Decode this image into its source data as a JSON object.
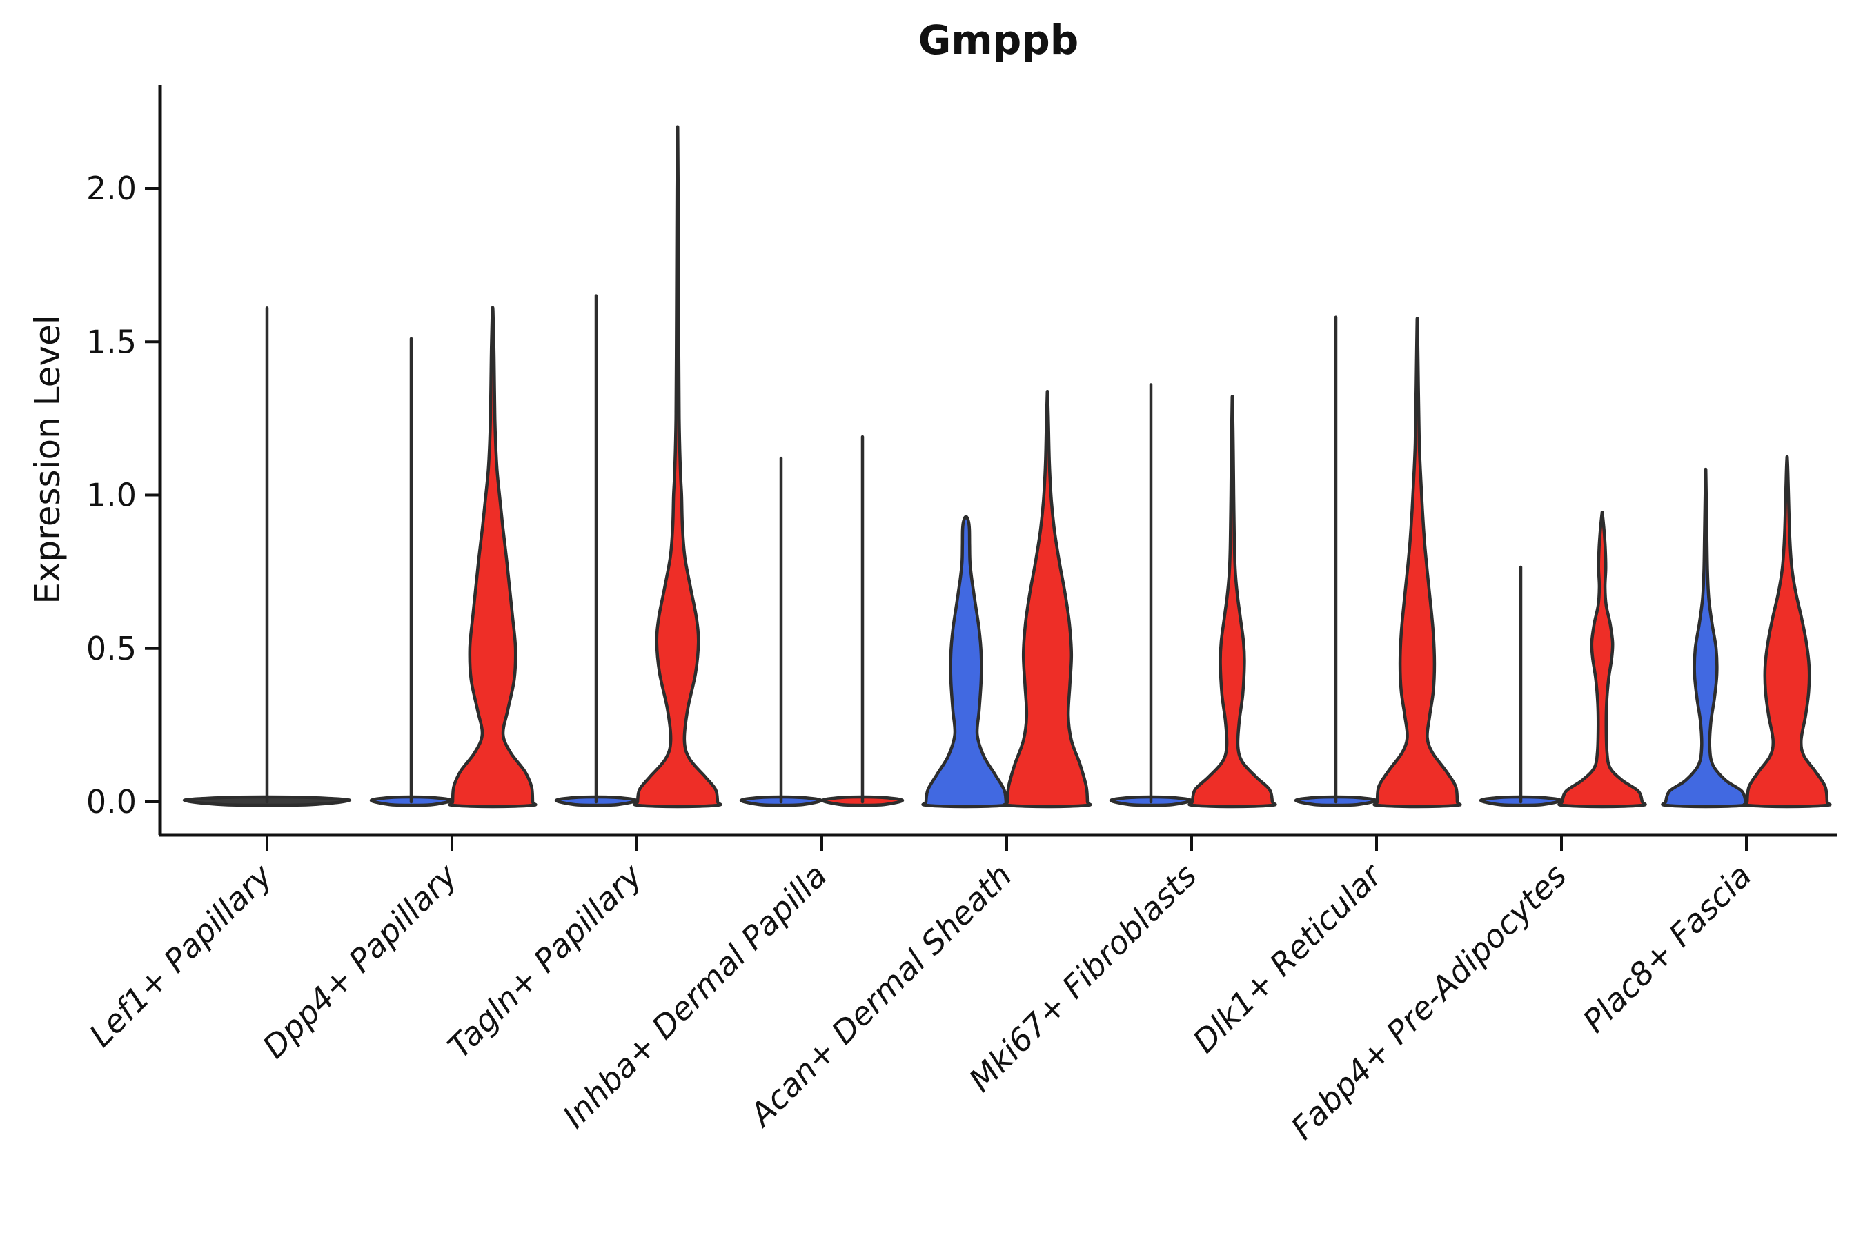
{
  "title": "Gmppb",
  "axes": {
    "ylabel": "Expression Level",
    "ytick_labels": [
      "0.0",
      "0.5",
      "1.0",
      "1.5",
      "2.0"
    ]
  },
  "colors": {
    "blue_fill": "#4169E1",
    "red_fill": "#EE2E27",
    "outline": "#2d2d2d",
    "axis": "#111111",
    "neutral_fill": "#3a3a3a",
    "background": "#ffffff"
  },
  "chart_data": {
    "type": "violin",
    "title": "Gmppb",
    "xlabel": "",
    "ylabel": "Expression Level",
    "ylim": [
      -0.1,
      2.3
    ],
    "yticks": [
      0.0,
      0.5,
      1.0,
      1.5,
      2.0
    ],
    "grid": false,
    "legend": "none",
    "categories": [
      "Lef1+ Papillary",
      "Dpp4+ Papillary",
      "Tagln+ Papillary",
      "Inhba+ Dermal Papilla",
      "Acan+ Dermal Sheath",
      "Mki67+ Fibroblasts",
      "Dlk1+ Reticular",
      "Fabp4+ Pre-Adipocytes",
      "Plac8+ Fascia"
    ],
    "series": [
      {
        "name": "group-blue",
        "color": "#4169E1"
      },
      {
        "name": "group-red",
        "color": "#EE2E27"
      }
    ],
    "violins": [
      {
        "category": "Lef1+ Papillary",
        "single": true,
        "center_group": {
          "kind": "spike",
          "max": 1.61,
          "wide": true,
          "color": "#3a3a3a"
        }
      },
      {
        "category": "Dpp4+ Papillary",
        "blue": {
          "kind": "spike",
          "max": 1.51
        },
        "red": {
          "kind": "body",
          "max": 1.6,
          "profile": [
            [
              0,
              1
            ],
            [
              0.05,
              0.97
            ],
            [
              0.1,
              0.8
            ],
            [
              0.16,
              0.45
            ],
            [
              0.22,
              0.26
            ],
            [
              0.3,
              0.38
            ],
            [
              0.4,
              0.54
            ],
            [
              0.5,
              0.57
            ],
            [
              0.6,
              0.5
            ],
            [
              0.7,
              0.42
            ],
            [
              0.8,
              0.34
            ],
            [
              0.9,
              0.25
            ],
            [
              1.0,
              0.17
            ],
            [
              1.1,
              0.1
            ],
            [
              1.25,
              0.055
            ],
            [
              1.45,
              0.035
            ],
            [
              1.6,
              0.008
            ]
          ]
        }
      },
      {
        "category": "Tagln+ Papillary",
        "blue": {
          "kind": "spike",
          "max": 1.65
        },
        "red": {
          "kind": "body",
          "max": 2.18,
          "profile": [
            [
              0,
              1
            ],
            [
              0.04,
              0.95
            ],
            [
              0.08,
              0.7
            ],
            [
              0.14,
              0.3
            ],
            [
              0.2,
              0.17
            ],
            [
              0.3,
              0.25
            ],
            [
              0.42,
              0.45
            ],
            [
              0.52,
              0.52
            ],
            [
              0.6,
              0.47
            ],
            [
              0.7,
              0.32
            ],
            [
              0.8,
              0.18
            ],
            [
              0.9,
              0.12
            ],
            [
              1.0,
              0.1
            ],
            [
              1.08,
              0.07
            ],
            [
              1.25,
              0.04
            ],
            [
              1.6,
              0.025
            ],
            [
              1.9,
              0.018
            ],
            [
              2.18,
              0.006
            ]
          ]
        }
      },
      {
        "category": "Inhba+ Dermal Papilla",
        "blue": {
          "kind": "spike",
          "max": 1.12
        },
        "red": {
          "kind": "spike",
          "max": 1.19
        }
      },
      {
        "category": "Acan+ Dermal Sheath",
        "blue": {
          "kind": "body",
          "max": 0.93,
          "cap": "round",
          "profile": [
            [
              0,
              1
            ],
            [
              0.04,
              0.95
            ],
            [
              0.09,
              0.72
            ],
            [
              0.15,
              0.44
            ],
            [
              0.22,
              0.28
            ],
            [
              0.3,
              0.33
            ],
            [
              0.4,
              0.38
            ],
            [
              0.48,
              0.38
            ],
            [
              0.56,
              0.33
            ],
            [
              0.64,
              0.24
            ],
            [
              0.72,
              0.15
            ],
            [
              0.78,
              0.1
            ],
            [
              0.84,
              0.09
            ],
            [
              0.89,
              0.085
            ],
            [
              0.915,
              0.06
            ]
          ]
        },
        "red": {
          "kind": "body",
          "max": 1.33,
          "profile": [
            [
              0,
              1
            ],
            [
              0.05,
              0.97
            ],
            [
              0.12,
              0.82
            ],
            [
              0.2,
              0.6
            ],
            [
              0.28,
              0.52
            ],
            [
              0.38,
              0.56
            ],
            [
              0.48,
              0.6
            ],
            [
              0.58,
              0.55
            ],
            [
              0.68,
              0.44
            ],
            [
              0.78,
              0.3
            ],
            [
              0.88,
              0.18
            ],
            [
              0.98,
              0.1
            ],
            [
              1.1,
              0.05
            ],
            [
              1.22,
              0.028
            ],
            [
              1.33,
              0.006
            ]
          ]
        }
      },
      {
        "category": "Mki67+ Fibroblasts",
        "blue": {
          "kind": "spike",
          "max": 1.36
        },
        "red": {
          "kind": "body",
          "max": 1.31,
          "profile": [
            [
              0,
              1
            ],
            [
              0.04,
              0.93
            ],
            [
              0.08,
              0.6
            ],
            [
              0.13,
              0.25
            ],
            [
              0.18,
              0.14
            ],
            [
              0.26,
              0.17
            ],
            [
              0.35,
              0.26
            ],
            [
              0.45,
              0.3
            ],
            [
              0.52,
              0.28
            ],
            [
              0.6,
              0.2
            ],
            [
              0.68,
              0.12
            ],
            [
              0.76,
              0.07
            ],
            [
              0.85,
              0.05
            ],
            [
              1.0,
              0.035
            ],
            [
              1.15,
              0.022
            ],
            [
              1.31,
              0.006
            ]
          ]
        }
      },
      {
        "category": "Dlk1+ Reticular",
        "blue": {
          "kind": "spike",
          "max": 1.58
        },
        "red": {
          "kind": "body",
          "max": 1.56,
          "profile": [
            [
              0,
              1
            ],
            [
              0.05,
              0.96
            ],
            [
              0.1,
              0.72
            ],
            [
              0.16,
              0.38
            ],
            [
              0.21,
              0.25
            ],
            [
              0.28,
              0.31
            ],
            [
              0.36,
              0.4
            ],
            [
              0.45,
              0.43
            ],
            [
              0.55,
              0.4
            ],
            [
              0.65,
              0.33
            ],
            [
              0.75,
              0.25
            ],
            [
              0.85,
              0.18
            ],
            [
              0.95,
              0.13
            ],
            [
              1.05,
              0.09
            ],
            [
              1.17,
              0.05
            ],
            [
              1.35,
              0.028
            ],
            [
              1.56,
              0.006
            ]
          ]
        }
      },
      {
        "category": "Fabp4+ Pre-Adipocytes",
        "blue": {
          "kind": "spike",
          "max": 0.765
        },
        "red": {
          "kind": "body",
          "max": 0.94,
          "profile": [
            [
              0,
              1
            ],
            [
              0.035,
              0.9
            ],
            [
              0.07,
              0.5
            ],
            [
              0.11,
              0.2
            ],
            [
              0.16,
              0.12
            ],
            [
              0.24,
              0.1
            ],
            [
              0.32,
              0.11
            ],
            [
              0.4,
              0.16
            ],
            [
              0.47,
              0.24
            ],
            [
              0.52,
              0.26
            ],
            [
              0.58,
              0.2
            ],
            [
              0.64,
              0.1
            ],
            [
              0.7,
              0.07
            ],
            [
              0.76,
              0.09
            ],
            [
              0.82,
              0.08
            ],
            [
              0.88,
              0.05
            ],
            [
              0.94,
              0.006
            ]
          ]
        }
      },
      {
        "category": "Plac8+ Fascia",
        "blue": {
          "kind": "body",
          "max": 1.07,
          "profile": [
            [
              0,
              1
            ],
            [
              0.035,
              0.9
            ],
            [
              0.07,
              0.5
            ],
            [
              0.12,
              0.18
            ],
            [
              0.18,
              0.1
            ],
            [
              0.26,
              0.13
            ],
            [
              0.34,
              0.22
            ],
            [
              0.42,
              0.28
            ],
            [
              0.5,
              0.26
            ],
            [
              0.58,
              0.16
            ],
            [
              0.66,
              0.08
            ],
            [
              0.75,
              0.045
            ],
            [
              0.88,
              0.028
            ],
            [
              1.07,
              0.006
            ]
          ]
        },
        "red": {
          "kind": "body",
          "max": 1.12,
          "profile": [
            [
              0,
              1
            ],
            [
              0.05,
              0.95
            ],
            [
              0.1,
              0.7
            ],
            [
              0.15,
              0.42
            ],
            [
              0.2,
              0.35
            ],
            [
              0.28,
              0.46
            ],
            [
              0.36,
              0.54
            ],
            [
              0.44,
              0.55
            ],
            [
              0.52,
              0.48
            ],
            [
              0.6,
              0.36
            ],
            [
              0.68,
              0.22
            ],
            [
              0.76,
              0.12
            ],
            [
              0.85,
              0.07
            ],
            [
              0.95,
              0.045
            ],
            [
              1.05,
              0.025
            ],
            [
              1.12,
              0.006
            ]
          ]
        }
      }
    ]
  }
}
